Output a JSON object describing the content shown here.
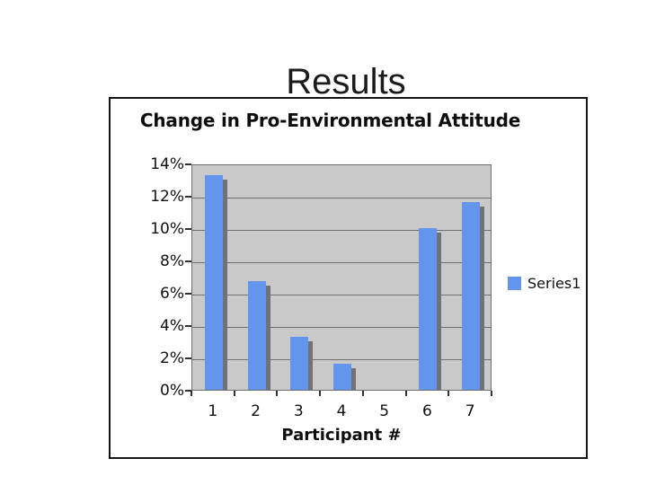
{
  "slide": {
    "title": "Results",
    "background": "#ffffff"
  },
  "chart": {
    "title": "Change in Pro-Environmental Attitude",
    "x_axis": {
      "title": "Participant #"
    },
    "legend": {
      "label": "Series1"
    },
    "colors": {
      "bar": "#6495ED",
      "bar_shadow": "#71717A",
      "plot_background": "#C9C9C9",
      "gridline": "#707070",
      "axis": "#333333",
      "frame_border": "#141414"
    }
  },
  "chart_data": {
    "type": "bar",
    "title": "Change in Pro-Environmental Attitude",
    "categories": [
      "1",
      "2",
      "3",
      "4",
      "5",
      "6",
      "7"
    ],
    "series": [
      {
        "name": "Series1",
        "values": [
          13.3,
          6.7,
          3.3,
          1.6,
          0,
          10,
          11.6
        ]
      }
    ],
    "xlabel": "Participant #",
    "ylabel": "",
    "ylim": [
      0,
      14
    ],
    "ytick_step": 2,
    "ytick_labels": [
      "0%",
      "2%",
      "4%",
      "6%",
      "8%",
      "10%",
      "12%",
      "14%"
    ],
    "grid": true,
    "legend_position": "right",
    "plot_background": "#C9C9C9",
    "bar_color": "#6495ED",
    "bar_shadow_color": "#71717A"
  }
}
